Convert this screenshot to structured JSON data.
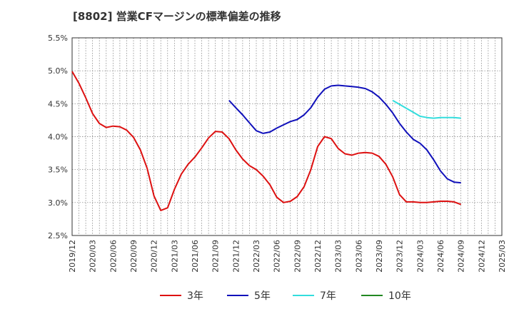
{
  "chart_data": {
    "type": "line",
    "title": "[8802]  営業CFマージンの標準偏差の推移",
    "xlabel": "",
    "ylabel": "",
    "ylim": [
      2.5,
      5.5
    ],
    "y_ticks": [
      "5.5%",
      "5.0%",
      "4.5%",
      "4.0%",
      "3.5%",
      "3.0%",
      "2.5%"
    ],
    "y_tick_values": [
      5.5,
      5.0,
      4.5,
      4.0,
      3.5,
      3.0,
      2.5
    ],
    "x_ticks": [
      "2019/12",
      "2020/03",
      "2020/06",
      "2020/09",
      "2020/12",
      "2021/03",
      "2021/06",
      "2021/09",
      "2021/12",
      "2022/03",
      "2022/06",
      "2022/09",
      "2022/12",
      "2023/03",
      "2023/06",
      "2023/09",
      "2023/12",
      "2024/03",
      "2024/06",
      "2024/09",
      "2024/12",
      "2025/03"
    ],
    "x_start": "2019/12",
    "x_end": "2025/03",
    "grid": true,
    "legend_position": "bottom",
    "series": [
      {
        "name": "3年",
        "color": "#dd1111",
        "start": "2019/12",
        "values": [
          4.99,
          4.81,
          4.59,
          4.35,
          4.2,
          4.14,
          4.16,
          4.15,
          4.1,
          3.99,
          3.8,
          3.52,
          3.1,
          2.88,
          2.92,
          3.2,
          3.43,
          3.58,
          3.69,
          3.83,
          3.98,
          4.08,
          4.07,
          3.97,
          3.8,
          3.66,
          3.56,
          3.5,
          3.4,
          3.27,
          3.08,
          3.0,
          3.02,
          3.09,
          3.24,
          3.5,
          3.85,
          4.0,
          3.97,
          3.82,
          3.74,
          3.72,
          3.75,
          3.76,
          3.75,
          3.7,
          3.58,
          3.39,
          3.12,
          3.01,
          3.01,
          3.0,
          3.0,
          3.01,
          3.02,
          3.02,
          3.01,
          2.97
        ]
      },
      {
        "name": "5年",
        "color": "#1111bb",
        "start": "2021/11",
        "values": [
          4.55,
          4.44,
          4.33,
          4.21,
          4.09,
          4.05,
          4.07,
          4.13,
          4.18,
          4.23,
          4.26,
          4.33,
          4.44,
          4.6,
          4.72,
          4.77,
          4.78,
          4.77,
          4.76,
          4.75,
          4.73,
          4.68,
          4.6,
          4.49,
          4.36,
          4.2,
          4.07,
          3.96,
          3.9,
          3.8,
          3.65,
          3.48,
          3.36,
          3.31,
          3.3
        ]
      },
      {
        "name": "7年",
        "color": "#33dddd",
        "start": "2023/11",
        "values": [
          4.55,
          4.49,
          4.43,
          4.37,
          4.31,
          4.29,
          4.28,
          4.29,
          4.29,
          4.29,
          4.28
        ]
      },
      {
        "name": "10年",
        "color": "#228822",
        "start": "2019/12",
        "values": []
      }
    ]
  }
}
